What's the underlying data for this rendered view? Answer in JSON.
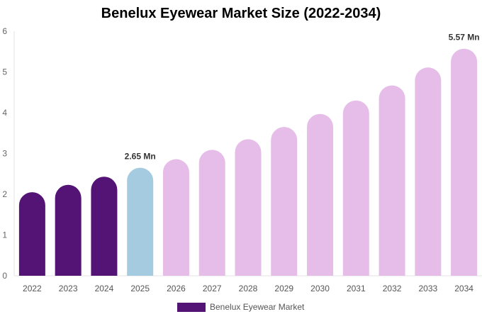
{
  "chart_data": {
    "type": "bar",
    "title": "Benelux Eyewear Market Size (2022-2034)",
    "categories": [
      "2022",
      "2023",
      "2024",
      "2025",
      "2026",
      "2027",
      "2028",
      "2029",
      "2030",
      "2031",
      "2032",
      "2033",
      "2034"
    ],
    "series": [
      {
        "name": "Benelux Eyewear Market",
        "values": [
          2.05,
          2.23,
          2.43,
          2.65,
          2.86,
          3.09,
          3.35,
          3.65,
          3.97,
          4.3,
          4.67,
          5.11,
          5.57
        ]
      }
    ],
    "ylim": [
      0,
      6
    ],
    "yticks": [
      "0",
      "1",
      "2",
      "3",
      "4",
      "5",
      "6"
    ],
    "data_labels": [
      {
        "index": 3,
        "text": "2.65 Mn"
      },
      {
        "index": 12,
        "text": "5.57 Mn"
      }
    ],
    "bar_colors": [
      "#541475",
      "#541475",
      "#541475",
      "#a4cbdf",
      "#e6bde9",
      "#e6bde9",
      "#e6bde9",
      "#e6bde9",
      "#e6bde9",
      "#e6bde9",
      "#e6bde9",
      "#e6bde9",
      "#e6bde9"
    ],
    "legend_color": "#541475",
    "legend_position": "bottom-center",
    "grid": false
  }
}
